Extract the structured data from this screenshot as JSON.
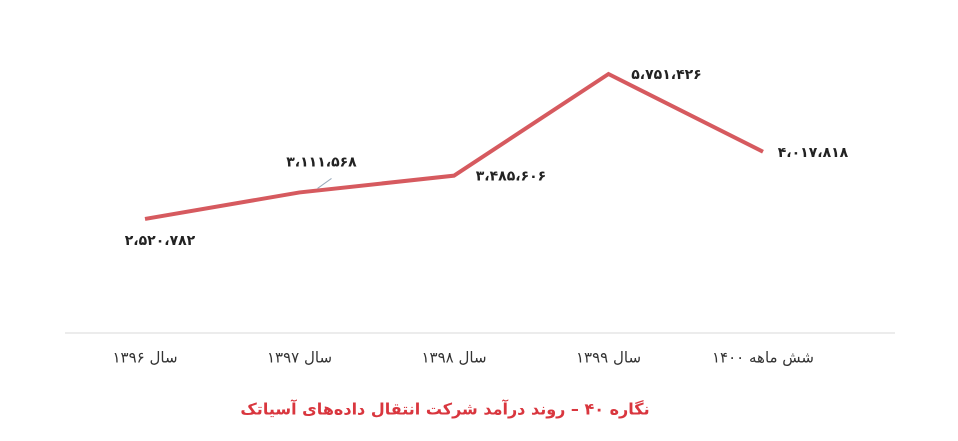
{
  "chart_data": {
    "type": "line",
    "title": "نگاره ۴۰ – روند درآمد شرکت انتقال داده‌های آسیاتک",
    "categories": [
      "سال ۱۳۹۶",
      "سال ۱۳۹۷",
      "سال ۱۳۹۸",
      "سال ۱۳۹۹",
      "شش ماهه ۱۴۰۰"
    ],
    "series": [
      {
        "color": "#d65a5f",
        "values": [
          2520782,
          3111568,
          3485606,
          5751426,
          4017818
        ],
        "value_labels": [
          "۲،۵۲۰،۷۸۲",
          "۳،۱۱۱،۵۶۸",
          "۳،۴۸۵،۶۰۶",
          "۵،۷۵۱،۴۲۶",
          "۴،۰۱۷،۸۱۸"
        ]
      }
    ]
  }
}
